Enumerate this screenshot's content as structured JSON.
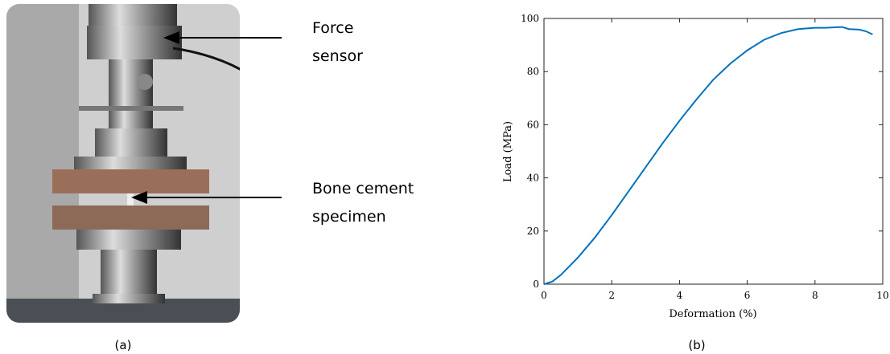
{
  "panel_a": {
    "callouts": [
      {
        "lines": [
          "Force",
          "sensor"
        ]
      },
      {
        "lines": [
          "Bone cement",
          "specimen"
        ]
      }
    ],
    "caption": "(a)"
  },
  "chart_data": {
    "type": "line",
    "caption": "(b)",
    "x_label": "Deformation (%)",
    "y_label": "Load (MPa)",
    "x": [
      0,
      0.25,
      0.5,
      1,
      1.5,
      2,
      2.5,
      3,
      3.5,
      4,
      4.5,
      5,
      5.5,
      6,
      6.5,
      7,
      7.5,
      8,
      8.3,
      8.8,
      9,
      9.3,
      9.5,
      9.7
    ],
    "series": [
      {
        "name": "Load",
        "color": "#0072bd",
        "values": [
          0,
          1,
          3.5,
          10,
          17.5,
          26,
          35,
          44,
          53,
          61.5,
          69.5,
          77,
          83,
          88,
          92,
          94.5,
          96,
          96.5,
          96.5,
          96.8,
          96,
          95.8,
          95.2,
          94
        ]
      }
    ],
    "xlim": [
      0,
      10
    ],
    "ylim": [
      0,
      100
    ],
    "xticks": [
      0,
      2,
      4,
      6,
      8,
      10
    ],
    "yticks": [
      0,
      20,
      40,
      60,
      80,
      100
    ]
  }
}
